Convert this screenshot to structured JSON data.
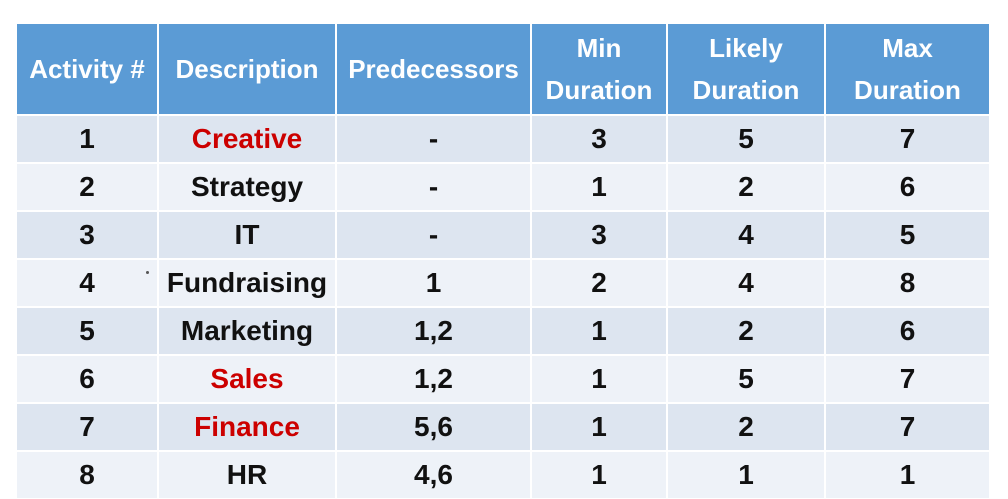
{
  "table": {
    "headers": [
      "Activity #",
      "Description",
      "Predecessors",
      "Min Duration",
      "Likely Duration",
      "Max Duration"
    ],
    "highlight_color": "#cc0000",
    "header_color": "#5b9bd5",
    "rows": [
      {
        "activity": "1",
        "description": "Creative",
        "predecessors": "-",
        "min": "3",
        "likely": "5",
        "max": "7",
        "highlight": true
      },
      {
        "activity": "2",
        "description": "Strategy",
        "predecessors": "-",
        "min": "1",
        "likely": "2",
        "max": "6",
        "highlight": false
      },
      {
        "activity": "3",
        "description": "IT",
        "predecessors": "-",
        "min": "3",
        "likely": "4",
        "max": "5",
        "highlight": false
      },
      {
        "activity": "4",
        "description": "Fundraising",
        "predecessors": "1",
        "min": "2",
        "likely": "4",
        "max": "8",
        "highlight": false
      },
      {
        "activity": "5",
        "description": "Marketing",
        "predecessors": "1,2",
        "min": "1",
        "likely": "2",
        "max": "6",
        "highlight": false
      },
      {
        "activity": "6",
        "description": "Sales",
        "predecessors": "1,2",
        "min": "1",
        "likely": "5",
        "max": "7",
        "highlight": true
      },
      {
        "activity": "7",
        "description": "Finance",
        "predecessors": "5,6",
        "min": "1",
        "likely": "2",
        "max": "7",
        "highlight": true
      },
      {
        "activity": "8",
        "description": "HR",
        "predecessors": "4,6",
        "min": "1",
        "likely": "1",
        "max": "1",
        "highlight": false
      }
    ]
  }
}
